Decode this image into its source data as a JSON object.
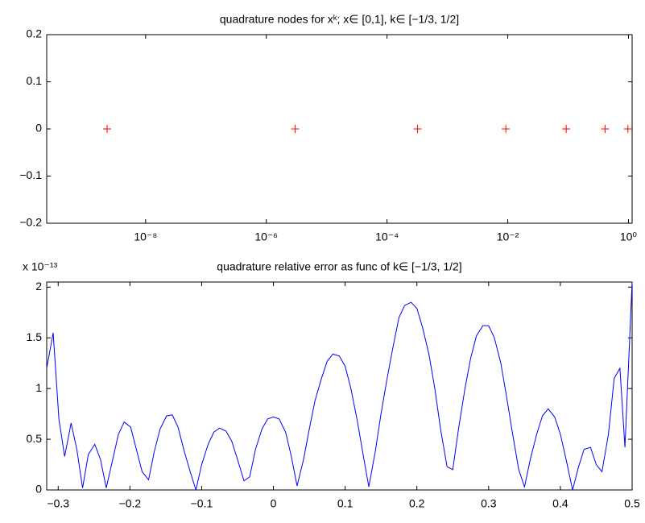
{
  "chart_data": [
    {
      "type": "scatter",
      "title": "quadrature nodes for xᵏ; x∈ [0,1], k∈ [−1/3, 1/2]",
      "xlog": true,
      "marker": "+",
      "color": "#ff0000",
      "x": [
        2.3e-09,
        3e-06,
        0.00032,
        0.0093,
        0.093,
        0.41,
        0.98
      ],
      "values": [
        0,
        0,
        0,
        0,
        0,
        0,
        0
      ],
      "xlim": [
        2.3e-10,
        1.15
      ],
      "xticks": [
        {
          "value": 1e-08,
          "label": "10⁻⁸"
        },
        {
          "value": 1e-06,
          "label": "10⁻⁶"
        },
        {
          "value": 0.0001,
          "label": "10⁻⁴"
        },
        {
          "value": 0.01,
          "label": "10⁻²"
        },
        {
          "value": 1,
          "label": "10⁰"
        }
      ],
      "ylim": [
        -0.2,
        0.2
      ],
      "yticks": [
        {
          "value": -0.2,
          "label": "−0.2"
        },
        {
          "value": -0.1,
          "label": "−0.1"
        },
        0,
        0.1,
        0.2
      ]
    },
    {
      "type": "line",
      "title": "quadrature relative error as func of k∈ [−1/3, 1/2]",
      "y_scale_label": "x 10⁻¹³",
      "color": "#0000ff",
      "x": [
        -0.316,
        -0.307,
        -0.299,
        -0.291,
        -0.282,
        -0.274,
        -0.266,
        -0.258,
        -0.249,
        -0.241,
        -0.233,
        -0.224,
        -0.216,
        -0.208,
        -0.199,
        -0.191,
        -0.183,
        -0.174,
        -0.166,
        -0.158,
        -0.149,
        -0.141,
        -0.133,
        -0.125,
        -0.116,
        -0.108,
        -0.1,
        -0.091,
        -0.083,
        -0.075,
        -0.066,
        -0.058,
        -0.05,
        -0.041,
        -0.033,
        -0.025,
        -0.016,
        -0.008,
        0.0,
        0.008,
        0.017,
        0.025,
        0.033,
        0.042,
        0.05,
        0.058,
        0.067,
        0.075,
        0.083,
        0.092,
        0.1,
        0.108,
        0.117,
        0.125,
        0.133,
        0.142,
        0.15,
        0.158,
        0.167,
        0.175,
        0.183,
        0.192,
        0.2,
        0.208,
        0.217,
        0.225,
        0.233,
        0.242,
        0.25,
        0.258,
        0.267,
        0.275,
        0.283,
        0.292,
        0.3,
        0.308,
        0.317,
        0.325,
        0.333,
        0.342,
        0.35,
        0.358,
        0.367,
        0.375,
        0.383,
        0.392,
        0.4,
        0.408,
        0.417,
        0.425,
        0.433,
        0.442,
        0.45,
        0.458,
        0.467,
        0.475,
        0.483,
        0.49,
        0.5
      ],
      "values": [
        1.2,
        1.55,
        0.7,
        0.33,
        0.66,
        0.4,
        0.02,
        0.35,
        0.45,
        0.3,
        0.02,
        0.3,
        0.55,
        0.67,
        0.62,
        0.4,
        0.18,
        0.1,
        0.38,
        0.6,
        0.73,
        0.74,
        0.62,
        0.4,
        0.18,
        0.0,
        0.25,
        0.45,
        0.57,
        0.61,
        0.58,
        0.48,
        0.3,
        0.09,
        0.13,
        0.4,
        0.6,
        0.7,
        0.72,
        0.7,
        0.57,
        0.33,
        0.04,
        0.3,
        0.6,
        0.88,
        1.1,
        1.27,
        1.34,
        1.32,
        1.22,
        1.0,
        0.68,
        0.35,
        0.03,
        0.38,
        0.75,
        1.08,
        1.42,
        1.7,
        1.82,
        1.85,
        1.79,
        1.6,
        1.33,
        1.0,
        0.6,
        0.23,
        0.2,
        0.6,
        1.0,
        1.3,
        1.52,
        1.62,
        1.62,
        1.5,
        1.25,
        0.92,
        0.57,
        0.2,
        0.03,
        0.3,
        0.55,
        0.73,
        0.8,
        0.72,
        0.55,
        0.3,
        0.0,
        0.22,
        0.4,
        0.42,
        0.25,
        0.18,
        0.55,
        1.1,
        1.2,
        0.42,
        2.05
      ],
      "xlim": [
        -0.316,
        0.5
      ],
      "xticks": [
        {
          "value": -0.3,
          "label": "−0.3"
        },
        {
          "value": -0.2,
          "label": "−0.2"
        },
        {
          "value": -0.1,
          "label": "−0.1"
        },
        0,
        0.1,
        0.2,
        0.3,
        0.4,
        0.5
      ],
      "ylim": [
        0,
        2.05
      ],
      "yticks": [
        0,
        0.5,
        1,
        1.5,
        2
      ]
    }
  ]
}
